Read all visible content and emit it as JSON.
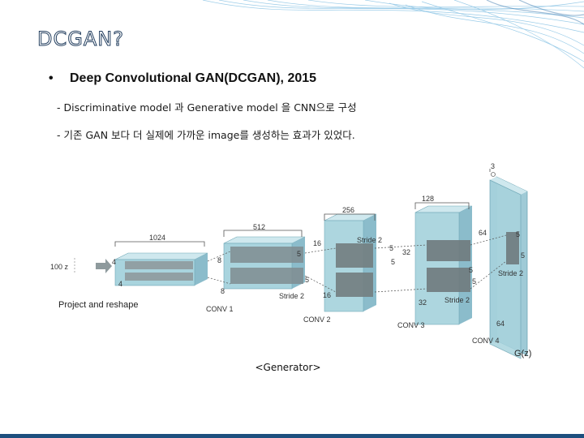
{
  "slide": {
    "title": "DCGAN?",
    "bullet": "Deep Convolutional GAN(DCGAN), 2015",
    "sub_items": [
      "- Discriminative model   과 Generative model   을 CNN으로 구성",
      "- 기존 GAN 보다 더 실제에 가까운 image를 생성하는 효과가 있었다."
    ],
    "caption": "<Generator>"
  },
  "diagram": {
    "input": "100 z",
    "project": "Project and reshape",
    "dim_1024": "1024",
    "dim_512": "512",
    "dim_256": "256",
    "dim_128": "128",
    "dim_3": "3",
    "dim_4a": "4",
    "dim_4b": "4",
    "dim_8a": "8",
    "dim_8b": "8",
    "dim_16a": "16",
    "dim_16b": "16",
    "dim_32a": "32",
    "dim_32b": "32",
    "dim_64a": "64",
    "dim_64b": "64",
    "k5_1": "5",
    "k5_2": "5",
    "k5_3": "5",
    "k5_4": "5",
    "k5_5": "5",
    "k5_6": "5",
    "k5_7": "5",
    "k5_8": "5",
    "stride_1": "Stride 2",
    "stride_2": "Stride 2",
    "stride_3": "Stride 2",
    "stride_4": "Stride 2",
    "conv1": "CONV 1",
    "conv2": "CONV 2",
    "conv3": "CONV 3",
    "conv4": "CONV 4",
    "output": "G(z)"
  },
  "colors": {
    "accent": "#1d4f7e",
    "volume": "#a9d4de",
    "kernel": "#7f8c90"
  }
}
